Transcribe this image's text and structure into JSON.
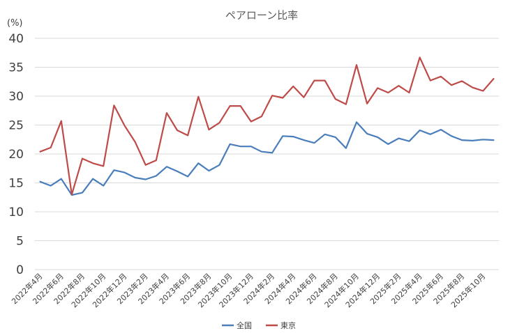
{
  "chart_data": {
    "type": "line",
    "title": "ペアローン比率",
    "unit_label": "(%)",
    "ylim": [
      0,
      40
    ],
    "yticks": [
      0,
      5,
      10,
      15,
      20,
      25,
      30,
      35,
      40
    ],
    "grid": "horizontal",
    "legend_position": "bottom",
    "x": [
      "2022年4月",
      "2022年5月",
      "2022年6月",
      "2022年7月",
      "2022年8月",
      "2022年9月",
      "2022年10月",
      "2022年11月",
      "2022年12月",
      "2023年1月",
      "2023年2月",
      "2023年3月",
      "2023年4月",
      "2023年5月",
      "2023年6月",
      "2023年7月",
      "2023年8月",
      "2023年9月",
      "2023年10月",
      "2023年11月",
      "2023年12月",
      "2024年1月",
      "2024年2月",
      "2024年3月",
      "2024年4月",
      "2024年5月",
      "2024年6月",
      "2024年7月",
      "2024年8月",
      "2024年9月",
      "2024年10月",
      "2024年11月",
      "2024年12月",
      "2025年1月",
      "2025年2月",
      "2025年3月",
      "2025年4月",
      "2025年5月",
      "2025年6月",
      "2025年7月",
      "2025年8月",
      "2025年9月",
      "2025年10月",
      "2025年11月"
    ],
    "xtick_labels": [
      "2022年4月",
      "2022年6月",
      "2022年8月",
      "2022年10月",
      "2022年12月",
      "2023年2月",
      "2023年4月",
      "2023年6月",
      "2023年8月",
      "2023年10月",
      "2023年12月",
      "2024年2月",
      "2024年4月",
      "2024年6月",
      "2024年8月",
      "2024年10月",
      "2024年12月",
      "2025年2月",
      "2025年4月",
      "2025年6月",
      "2025年8月",
      "2025年10月"
    ],
    "series": [
      {
        "name": "全国",
        "color": "#4a7ebb",
        "values": [
          15.2,
          14.5,
          15.7,
          12.9,
          13.3,
          15.7,
          14.5,
          17.2,
          16.8,
          15.9,
          15.6,
          16.2,
          17.8,
          17.0,
          16.1,
          18.4,
          17.1,
          18.1,
          21.7,
          21.3,
          21.3,
          20.4,
          20.2,
          23.1,
          23.0,
          22.4,
          21.9,
          23.4,
          22.9,
          21.0,
          25.5,
          23.5,
          22.9,
          21.7,
          22.7,
          22.2,
          24.1,
          23.4,
          24.2,
          23.1,
          22.4,
          22.3,
          22.5,
          22.4
        ]
      },
      {
        "name": "東京",
        "color": "#be4b48",
        "values": [
          20.4,
          21.1,
          25.7,
          13.0,
          19.2,
          18.4,
          17.9,
          28.4,
          24.9,
          22.1,
          18.1,
          18.9,
          27.1,
          24.1,
          23.2,
          29.9,
          24.2,
          25.4,
          28.3,
          28.3,
          25.6,
          26.5,
          30.1,
          29.7,
          31.7,
          29.8,
          32.7,
          32.7,
          29.5,
          28.6,
          35.4,
          28.7,
          31.4,
          30.6,
          31.8,
          30.6,
          36.7,
          32.7,
          33.4,
          31.9,
          32.6,
          31.5,
          30.9,
          33.0
        ]
      }
    ]
  }
}
